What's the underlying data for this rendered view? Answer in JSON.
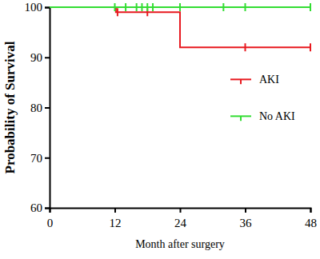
{
  "chart_data": {
    "type": "step",
    "x_label": "Month after surgery",
    "y_label": "Probability of Survival",
    "xlim": [
      0,
      48
    ],
    "xticks": [
      0,
      12,
      24,
      36,
      48
    ],
    "ylim": [
      60,
      100
    ],
    "yticks": [
      60,
      70,
      80,
      90,
      100
    ],
    "legend": "right",
    "series": [
      {
        "name": "AKI",
        "color": "#e8191f",
        "marker": "tick",
        "x": [
          0,
          12.2,
          24,
          48
        ],
        "values": [
          100,
          99,
          92,
          92
        ],
        "censor_x": [
          12.5,
          18,
          36,
          48
        ],
        "censor_values": [
          99,
          99,
          92,
          92
        ]
      },
      {
        "name": "No AKI",
        "color": "#33dd33",
        "marker": "tick",
        "x": [
          0,
          48
        ],
        "values": [
          100,
          100
        ],
        "censor_x": [
          12,
          14,
          16,
          17,
          18,
          19,
          24,
          32,
          36,
          48
        ],
        "censor_values": [
          100,
          100,
          100,
          100,
          100,
          100,
          100,
          100,
          100,
          100
        ]
      }
    ]
  }
}
